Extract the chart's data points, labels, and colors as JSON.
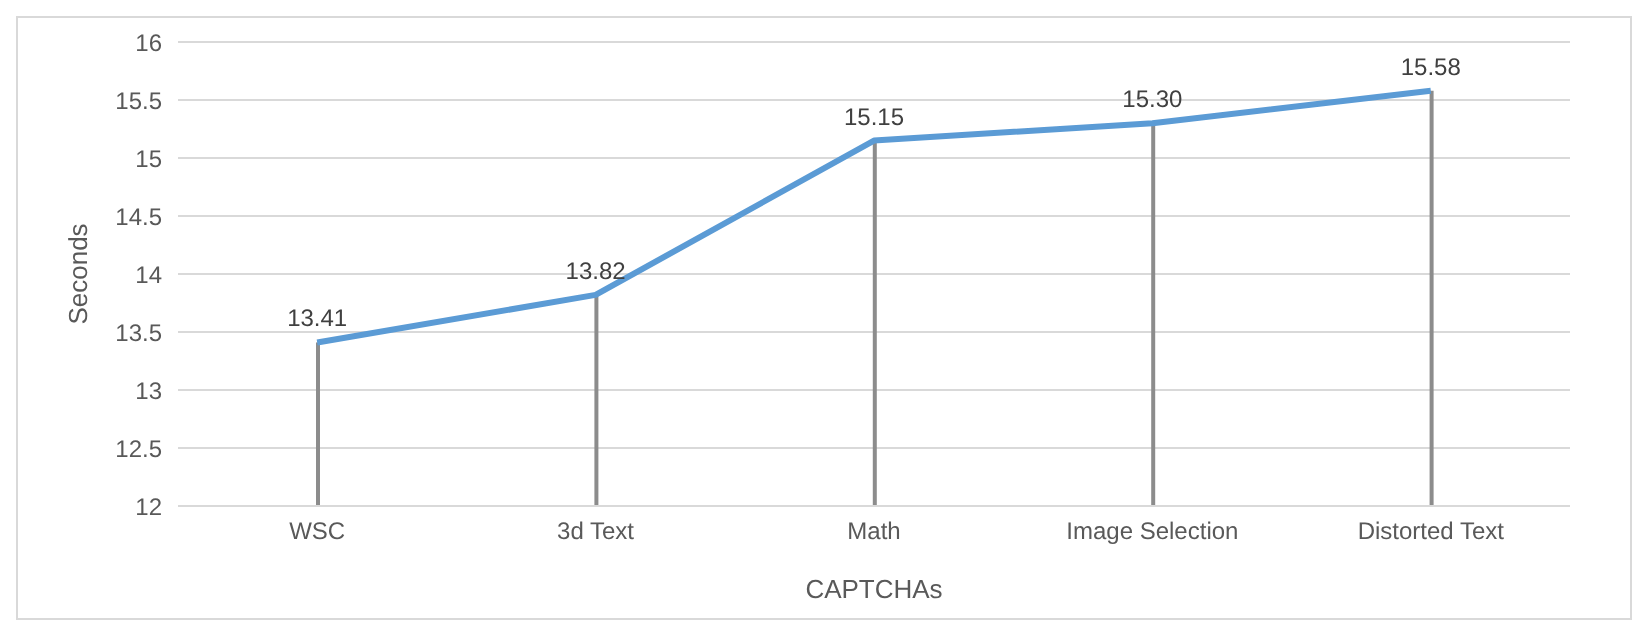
{
  "chart_data": {
    "type": "line",
    "xlabel": "CAPTCHAs",
    "ylabel": "Seconds",
    "categories": [
      "WSC",
      "3d Text",
      "Math",
      "Image Selection",
      "Distorted Text"
    ],
    "series": [
      {
        "color": "#5b9bd5",
        "values": [
          13.41,
          13.82,
          15.15,
          15.3,
          15.58
        ],
        "value_labels": [
          "13.41",
          "13.82",
          "15.15",
          "15.30",
          "15.58"
        ]
      },
      {
        "type": "bar",
        "color": "#8c8c8c",
        "values": [
          13.41,
          13.82,
          15.15,
          15.3,
          15.58
        ]
      }
    ],
    "ylim": [
      12,
      16
    ],
    "yticks": [
      12,
      12.5,
      13,
      13.5,
      14,
      14.5,
      15,
      15.5,
      16
    ],
    "grid": "y",
    "legend": false,
    "marker": "none"
  }
}
